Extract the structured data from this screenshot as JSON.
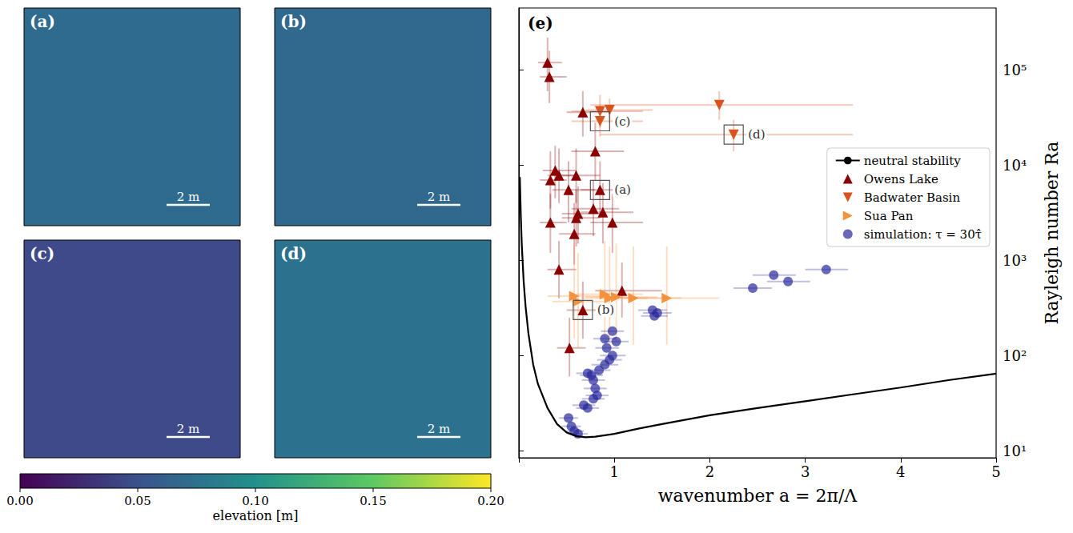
{
  "chart_data": {
    "type": "scatter",
    "title": "(e)",
    "x_label": "wavenumber a = 2π/Λ",
    "y_label": "Rayleigh number Ra",
    "xlim": [
      0,
      5
    ],
    "xticks": [
      0,
      1,
      2,
      3,
      4,
      5
    ],
    "ylim": [
      8.4,
      450000
    ],
    "yticks": [
      {
        "value": 10,
        "label": "10¹"
      },
      {
        "value": 100,
        "label": "10²"
      },
      {
        "value": 1000,
        "label": "10³"
      },
      {
        "value": 10000,
        "label": "10⁴"
      },
      {
        "value": 100000,
        "label": "10⁵"
      }
    ],
    "log": "y",
    "grid": false,
    "legend": "right",
    "series": [
      {
        "name": "neutral stability",
        "type": "line",
        "color": "#000000",
        "line_style": "solid",
        "x": [
          0.01,
          0.02,
          0.03,
          0.05,
          0.07,
          0.1,
          0.15,
          0.2,
          0.3,
          0.4,
          0.5,
          0.6,
          0.7,
          0.8,
          1.0,
          1.25,
          1.5,
          2.0,
          2.5,
          3.0,
          3.5,
          4.0,
          4.5,
          5.0
        ],
        "values": [
          7500,
          3000,
          1500,
          600,
          330,
          170,
          80,
          50,
          28,
          19,
          15.5,
          14.2,
          13.8,
          14,
          15,
          17,
          19,
          23.5,
          28,
          33,
          39,
          46,
          55,
          64.5
        ]
      },
      {
        "name": "Owens Lake",
        "type": "scatter",
        "marker": "triangle-up",
        "color": "#8b0000",
        "x": [
          0.3,
          0.32,
          0.67,
          0.8,
          0.38,
          0.33,
          0.42,
          0.6,
          0.52,
          0.85,
          0.78,
          0.88,
          0.62,
          0.6,
          0.33,
          0.98,
          0.58,
          0.42,
          1.08,
          0.67,
          0.53
        ],
        "values": [
          120000,
          85000,
          36000,
          14000,
          8800,
          7000,
          7800,
          7800,
          5500,
          5500,
          3500,
          3200,
          3100,
          2800,
          2500,
          2500,
          1900,
          800,
          480,
          300,
          120
        ],
        "x_range": [
          [
            0.2,
            0.45
          ],
          [
            0.22,
            0.5
          ],
          [
            0.5,
            0.95
          ],
          [
            0.55,
            1.1
          ],
          [
            0.25,
            0.6
          ],
          [
            0.22,
            0.5
          ],
          [
            0.3,
            0.6
          ],
          [
            0.45,
            0.85
          ],
          [
            0.35,
            0.8
          ],
          [
            0.65,
            1.1
          ],
          [
            0.55,
            1.05
          ],
          [
            0.65,
            1.2
          ],
          [
            0.45,
            0.85
          ],
          [
            0.45,
            0.85
          ],
          [
            0.22,
            0.5
          ],
          [
            0.75,
            1.3
          ],
          [
            0.42,
            0.8
          ],
          [
            0.3,
            0.6
          ],
          [
            0.8,
            1.5
          ],
          [
            0.5,
            0.9
          ],
          [
            0.4,
            0.7
          ]
        ],
        "y_range": [
          [
            60000,
            220000
          ],
          [
            45000,
            160000
          ],
          [
            20000,
            60000
          ],
          [
            7000,
            28000
          ],
          [
            4500,
            16000
          ],
          [
            3500,
            14000
          ],
          [
            4000,
            15000
          ],
          [
            4000,
            15000
          ],
          [
            2500,
            11000
          ],
          [
            2800,
            11000
          ],
          [
            1800,
            7000
          ],
          [
            1500,
            6500
          ],
          [
            1500,
            6000
          ],
          [
            1400,
            5500
          ],
          [
            1200,
            5000
          ],
          [
            1200,
            5000
          ],
          [
            900,
            4000
          ],
          [
            400,
            1600
          ],
          [
            250,
            950
          ],
          [
            150,
            600
          ],
          [
            60,
            250
          ]
        ]
      },
      {
        "name": "Badwater Basin",
        "type": "scatter",
        "marker": "triangle-down",
        "color": "#d9531e",
        "x": [
          0.85,
          0.95,
          0.85,
          2.1,
          2.25
        ],
        "values": [
          37000,
          38000,
          29000,
          43000,
          21000
        ],
        "x_range": [
          [
            0.55,
            1.3
          ],
          [
            0.7,
            1.4
          ],
          [
            0.55,
            1.3
          ],
          [
            0.75,
            3.5
          ],
          [
            0.85,
            3.5
          ]
        ],
        "y_range": [
          [
            25000,
            55000
          ],
          [
            28000,
            50000
          ],
          [
            20000,
            42000
          ],
          [
            30000,
            60000
          ],
          [
            14000,
            30000
          ]
        ]
      },
      {
        "name": "Sua Pan",
        "type": "scatter",
        "marker": "triangle-right",
        "color": "#f5923e",
        "x": [
          0.58,
          0.62,
          0.9,
          0.95,
          1.02,
          1.2,
          1.55
        ],
        "values": [
          420,
          370,
          440,
          400,
          410,
          400,
          400
        ],
        "x_range": [
          [
            0.3,
            0.9
          ],
          [
            0.35,
            0.95
          ],
          [
            0.6,
            1.3
          ],
          [
            0.65,
            1.35
          ],
          [
            0.7,
            1.45
          ],
          [
            0.85,
            1.7
          ],
          [
            1.1,
            2.1
          ]
        ],
        "y_range": [
          [
            150,
            1500
          ],
          [
            120,
            1200
          ],
          [
            150,
            1600
          ],
          [
            130,
            1400
          ],
          [
            140,
            1500
          ],
          [
            130,
            1400
          ],
          [
            130,
            1400
          ]
        ]
      },
      {
        "name": "simulation: τ = 30τ̂",
        "type": "scatter",
        "marker": "circle",
        "color": "#2a2a9c",
        "x": [
          0.52,
          0.55,
          0.58,
          0.62,
          0.68,
          0.72,
          0.78,
          0.8,
          0.82,
          0.78,
          0.72,
          0.76,
          0.84,
          0.9,
          0.95,
          0.98,
          0.92,
          0.9,
          0.98,
          1.02,
          1.4,
          1.42,
          1.45,
          2.45,
          2.67,
          2.82,
          3.22
        ],
        "values": [
          22,
          18,
          16,
          15,
          30,
          28,
          35,
          45,
          38,
          55,
          65,
          62,
          70,
          80,
          90,
          100,
          120,
          150,
          180,
          140,
          300,
          260,
          280,
          510,
          700,
          600,
          800
        ],
        "x_range": [
          [
            0.42,
            0.62
          ],
          [
            0.45,
            0.65
          ],
          [
            0.48,
            0.68
          ],
          [
            0.52,
            0.72
          ],
          [
            0.56,
            0.8
          ],
          [
            0.6,
            0.84
          ],
          [
            0.66,
            0.9
          ],
          [
            0.68,
            0.92
          ],
          [
            0.7,
            0.94
          ],
          [
            0.66,
            0.9
          ],
          [
            0.6,
            0.84
          ],
          [
            0.64,
            0.88
          ],
          [
            0.72,
            0.96
          ],
          [
            0.76,
            1.04
          ],
          [
            0.82,
            1.08
          ],
          [
            0.85,
            1.12
          ],
          [
            0.8,
            1.05
          ],
          [
            0.78,
            1.02
          ],
          [
            0.86,
            1.1
          ],
          [
            0.9,
            1.15
          ],
          [
            1.25,
            1.55
          ],
          [
            1.28,
            1.56
          ],
          [
            1.3,
            1.6
          ],
          [
            2.25,
            2.65
          ],
          [
            2.45,
            2.9
          ],
          [
            2.6,
            3.05
          ],
          [
            3.0,
            3.45
          ]
        ]
      }
    ],
    "annotations": [
      {
        "text": "(a)",
        "x": 0.85,
        "y": 5500
      },
      {
        "text": "(b)",
        "x": 0.67,
        "y": 300
      },
      {
        "text": "(c)",
        "x": 0.85,
        "y": 29000
      },
      {
        "text": "(d)",
        "x": 2.25,
        "y": 21000
      }
    ]
  },
  "image_panels": [
    {
      "label": "(a)",
      "scale_bar": "2 m",
      "color": "#2f6b8e"
    },
    {
      "label": "(b)",
      "scale_bar": "2 m",
      "color": "#31688e"
    },
    {
      "label": "(c)",
      "scale_bar": "2 m",
      "color": "#3e4a89"
    },
    {
      "label": "(d)",
      "scale_bar": "2 m",
      "color": "#2c718e"
    }
  ],
  "colorbar": {
    "label": "elevation [m]",
    "range": [
      0,
      0.2
    ],
    "ticks": [
      {
        "value": 0,
        "label": "0.00"
      },
      {
        "value": 0.05,
        "label": "0.05"
      },
      {
        "value": 0.1,
        "label": "0.10"
      },
      {
        "value": 0.15,
        "label": "0.15"
      },
      {
        "value": 0.2,
        "label": "0.20"
      }
    ]
  }
}
